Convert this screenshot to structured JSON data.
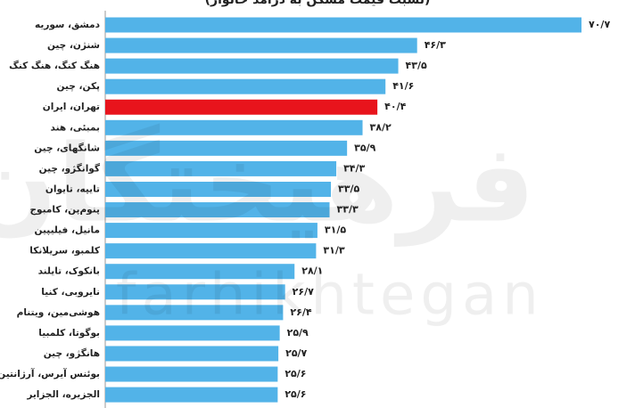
{
  "chart_data": {
    "type": "bar",
    "orientation": "horizontal",
    "title": "(نسبت قیمت مسکن به درآمد خانوار)",
    "categories": [
      "دمشق، سوریه",
      "شنژن، چین",
      "هنگ کنگ، هنگ کنگ",
      "پکن، چین",
      "تهران، ایران",
      "بمبئی، هند",
      "شانگهای، چین",
      "گوانگژو، چین",
      "تایپه، تایوان",
      "پنوم‌پن، کامبوج",
      "مانیل، فیلیپین",
      "کلمبو، سریلانکا",
      "بانکوک، تایلند",
      "نایروبی، کنیا",
      "هوشی‌مین، ویتنام",
      "بوگوتا، کلمبیا",
      "هانگژو، چین",
      "بوئنس آیرس، آرژانتین",
      "الجزیره، الجزایر"
    ],
    "values": [
      70.7,
      46.3,
      43.5,
      41.6,
      40.4,
      38.2,
      35.9,
      34.3,
      33.5,
      33.3,
      31.5,
      31.3,
      28.1,
      26.7,
      26.4,
      25.9,
      25.7,
      25.6,
      25.6
    ],
    "value_labels": [
      "۷۰/۷",
      "۴۶/۳",
      "۴۳/۵",
      "۴۱/۶",
      "۴۰/۴",
      "۳۸/۲",
      "۳۵/۹",
      "۳۴/۳",
      "۳۳/۵",
      "۳۳/۳",
      "۳۱/۵",
      "۳۱/۳",
      "۲۸/۱",
      "۲۶/۷",
      "۲۶/۴",
      "۲۵/۹",
      "۲۵/۷",
      "۲۵/۶",
      "۲۵/۶"
    ],
    "colors": [
      "#52b3e8",
      "#52b3e8",
      "#52b3e8",
      "#52b3e8",
      "#e8141c",
      "#52b3e8",
      "#52b3e8",
      "#52b3e8",
      "#52b3e8",
      "#52b3e8",
      "#52b3e8",
      "#52b3e8",
      "#52b3e8",
      "#52b3e8",
      "#52b3e8",
      "#52b3e8",
      "#52b3e8",
      "#52b3e8",
      "#52b3e8"
    ],
    "watermark": [
      "فرهیختگان",
      "farhikhtegan"
    ]
  }
}
